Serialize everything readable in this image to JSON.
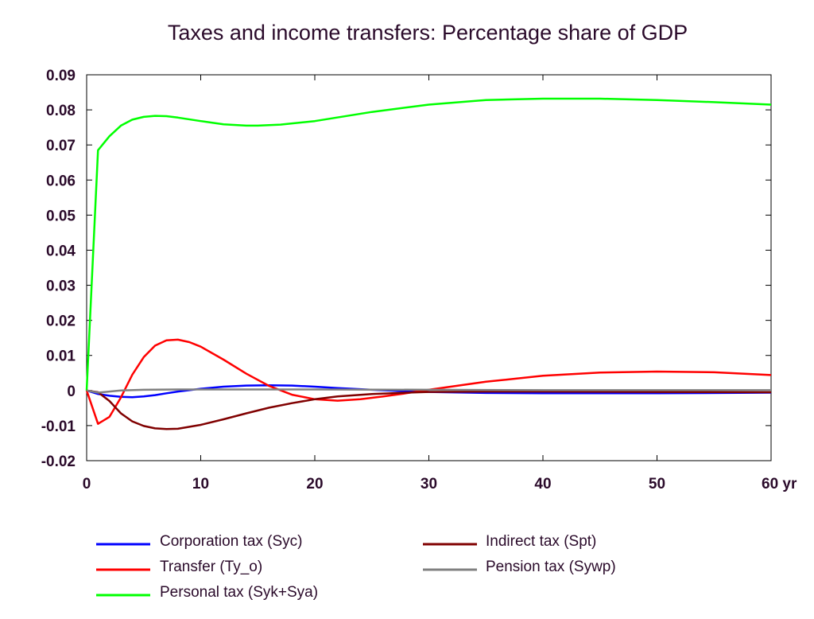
{
  "chart_data": {
    "type": "line",
    "title": "Taxes and income transfers: Percentage share of GDP",
    "x_unit_label": "yr",
    "xlim": [
      0,
      60
    ],
    "ylim": [
      -0.02,
      0.09
    ],
    "x_ticks": [
      0,
      10,
      20,
      30,
      40,
      50,
      60
    ],
    "x_tick_labels": [
      "0",
      "10",
      "20",
      "30",
      "40",
      "50",
      "60 yr"
    ],
    "y_ticks": [
      -0.02,
      -0.01,
      0,
      0.01,
      0.02,
      0.03,
      0.04,
      0.05,
      0.06,
      0.07,
      0.08,
      0.09
    ],
    "y_tick_labels": [
      "-0.02",
      "-0.01",
      "0",
      "0.01",
      "0.02",
      "0.03",
      "0.04",
      "0.05",
      "0.06",
      "0.07",
      "0.08",
      "0.09"
    ],
    "grid": false,
    "legend_position": "bottom",
    "series": [
      {
        "name": "Corporation tax (Syc)",
        "color": "#0000ff",
        "x": [
          0,
          1,
          2,
          3,
          4,
          5,
          6,
          7,
          8,
          10,
          12,
          14,
          16,
          18,
          20,
          22,
          25,
          28,
          30,
          35,
          40,
          50,
          60
        ],
        "y": [
          0,
          -0.001,
          -0.0015,
          -0.0018,
          -0.0019,
          -0.0017,
          -0.0013,
          -0.0008,
          -0.0003,
          0.0005,
          0.0011,
          0.0014,
          0.0015,
          0.0014,
          0.0011,
          0.0007,
          0.0002,
          -0.0002,
          -0.0004,
          -0.0007,
          -0.0008,
          -0.0008,
          -0.0006
        ]
      },
      {
        "name": "Transfer (Ty_o)",
        "color": "#ff0000",
        "x": [
          0,
          1,
          2,
          3,
          4,
          5,
          6,
          7,
          8,
          9,
          10,
          12,
          14,
          16,
          18,
          20,
          22,
          24,
          26,
          28,
          30,
          35,
          40,
          45,
          50,
          55,
          60
        ],
        "y": [
          0,
          -0.0095,
          -0.0075,
          -0.002,
          0.0045,
          0.0095,
          0.0128,
          0.0143,
          0.0145,
          0.0138,
          0.0125,
          0.0088,
          0.0048,
          0.0013,
          -0.0012,
          -0.0025,
          -0.0029,
          -0.0025,
          -0.0017,
          -0.0008,
          0.0002,
          0.0025,
          0.0042,
          0.0051,
          0.0054,
          0.0052,
          0.0044
        ]
      },
      {
        "name": "Personal tax (Syk+Sya)",
        "color": "#00ff00",
        "x": [
          0,
          1,
          2,
          3,
          4,
          5,
          6,
          7,
          8,
          10,
          12,
          14,
          15,
          17,
          20,
          25,
          30,
          35,
          40,
          45,
          50,
          55,
          60
        ],
        "y": [
          0,
          0.0685,
          0.0725,
          0.0755,
          0.0772,
          0.078,
          0.0783,
          0.0782,
          0.0778,
          0.0768,
          0.0759,
          0.0755,
          0.0755,
          0.0758,
          0.0768,
          0.0794,
          0.0815,
          0.0828,
          0.0832,
          0.0832,
          0.0828,
          0.0822,
          0.0815
        ]
      },
      {
        "name": "Indirect tax (Spt)",
        "color": "#800000",
        "x": [
          0,
          1,
          2,
          3,
          4,
          5,
          6,
          7,
          8,
          10,
          12,
          14,
          16,
          18,
          20,
          22,
          25,
          28,
          30,
          35,
          40,
          50,
          60
        ],
        "y": [
          0,
          -0.0005,
          -0.003,
          -0.0065,
          -0.0088,
          -0.0101,
          -0.0108,
          -0.011,
          -0.0109,
          -0.0098,
          -0.0082,
          -0.0065,
          -0.0049,
          -0.0036,
          -0.0025,
          -0.0017,
          -0.001,
          -0.0006,
          -0.0004,
          -0.0003,
          -0.0003,
          -0.0004,
          -0.0005
        ]
      },
      {
        "name": "Pension tax (Sywp)",
        "color": "#808080",
        "x": [
          0,
          1,
          2,
          3,
          5,
          8,
          10,
          15,
          20,
          30,
          40,
          50,
          60
        ],
        "y": [
          0,
          -0.0006,
          -0.0003,
          0,
          0.0002,
          0.0003,
          0.0003,
          0.0003,
          0.0003,
          0.0002,
          0.0001,
          0.0001,
          0.0001
        ]
      }
    ],
    "legend_order": [
      0,
      3,
      1,
      4,
      2
    ]
  }
}
